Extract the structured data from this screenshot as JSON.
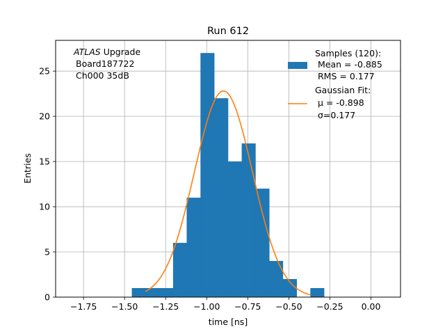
{
  "chart_data": {
    "type": "bar",
    "title": "Run 612",
    "xlabel": "time [ns]",
    "ylabel": "Entries",
    "xlim": [
      -1.92,
      0.18
    ],
    "ylim": [
      0,
      28.4
    ],
    "grid": true,
    "xticks": [
      "−1.75",
      "−1.50",
      "−1.25",
      "−1.00",
      "−0.75",
      "−0.50",
      "−0.25",
      "0.00"
    ],
    "xtick_values": [
      -1.75,
      -1.5,
      -1.25,
      -1.0,
      -0.75,
      -0.5,
      -0.25,
      0.0
    ],
    "yticks": [
      "0",
      "5",
      "10",
      "15",
      "20",
      "25"
    ],
    "ytick_values": [
      0,
      5,
      10,
      15,
      20,
      25
    ],
    "annotation": {
      "italic": "ATLAS",
      "line1_rest": " Upgrade",
      "line2": "Board187722",
      "line3": "Ch000 35dB"
    },
    "series": [
      {
        "name": "Samples (120):",
        "kind": "histogram",
        "color": "#1f77b4",
        "stats": [
          "Mean = -0.885",
          "RMS = 0.177"
        ],
        "bin_edges": [
          -1.456,
          -1.373,
          -1.289,
          -1.205,
          -1.122,
          -1.038,
          -0.955,
          -0.871,
          -0.787,
          -0.704,
          -0.62,
          -0.537,
          -0.453,
          -0.369,
          -0.286
        ],
        "counts": [
          1,
          1,
          1,
          6,
          11,
          27,
          22,
          15,
          17,
          12,
          4,
          2,
          0,
          1
        ]
      },
      {
        "name": "Gaussian Fit:",
        "kind": "line",
        "color": "#ff7f0e",
        "params": {
          "mu": -0.898,
          "sigma": 0.177,
          "amplitude": 22.8
        },
        "labels": [
          "μ = -0.898",
          "σ=0.177"
        ],
        "x_range": [
          -1.373,
          -0.369
        ]
      }
    ]
  }
}
